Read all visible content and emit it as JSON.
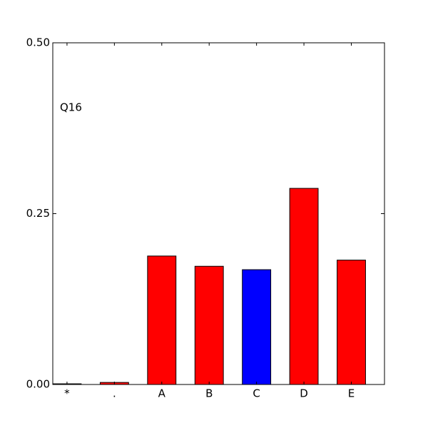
{
  "chart_data": {
    "type": "bar",
    "annotation": "Q16",
    "categories": [
      "*",
      ".",
      "A",
      "B",
      "C",
      "D",
      "E"
    ],
    "values": [
      0.001,
      0.003,
      0.188,
      0.173,
      0.168,
      0.287,
      0.182
    ],
    "colors": [
      "#ff0000",
      "#ff0000",
      "#ff0000",
      "#ff0000",
      "#0000ff",
      "#ff0000",
      "#ff0000"
    ],
    "ylim": [
      0,
      0.5
    ],
    "yticks": [
      {
        "value": 0,
        "label": "0.00"
      },
      {
        "value": 0.25,
        "label": "0.25"
      },
      {
        "value": 0.5,
        "label": "0.50"
      }
    ],
    "grid": false
  }
}
